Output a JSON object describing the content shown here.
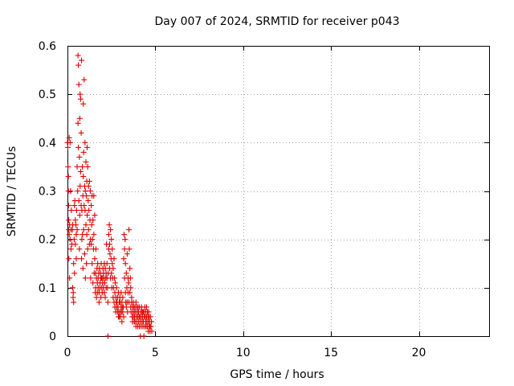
{
  "chart_data": {
    "type": "scatter",
    "title": "Day 007 of 2024, SRMTID for receiver p043",
    "xlabel": "GPS time / hours",
    "ylabel": "SRMTID / TECUs",
    "xlim": [
      0,
      24
    ],
    "ylim": [
      0,
      0.6
    ],
    "xticks": [
      "0",
      "5",
      "10",
      "15",
      "20"
    ],
    "yticks": [
      "0",
      "0.1",
      "0.2",
      "0.3",
      "0.4",
      "0.5",
      "0.6"
    ],
    "grid": true,
    "marker": "plus",
    "color": "#e00000",
    "series": [
      {
        "name": "SRMTID",
        "points": [
          [
            0.0,
            0.4
          ],
          [
            0.02,
            0.39
          ],
          [
            0.03,
            0.35
          ],
          [
            0.05,
            0.33
          ],
          [
            0.05,
            0.3
          ],
          [
            0.06,
            0.27
          ],
          [
            0.07,
            0.24
          ],
          [
            0.08,
            0.22
          ],
          [
            0.08,
            0.16
          ],
          [
            0.1,
            0.41
          ],
          [
            0.1,
            0.21
          ],
          [
            0.12,
            0.23
          ],
          [
            0.12,
            0.12
          ],
          [
            0.15,
            0.4
          ],
          [
            0.15,
            0.2
          ],
          [
            0.18,
            0.3
          ],
          [
            0.2,
            0.22
          ],
          [
            0.2,
            0.18
          ],
          [
            0.22,
            0.26
          ],
          [
            0.25,
            0.19
          ],
          [
            0.28,
            0.22
          ],
          [
            0.3,
            0.23
          ],
          [
            0.3,
            0.1
          ],
          [
            0.32,
            0.08
          ],
          [
            0.33,
            0.09
          ],
          [
            0.35,
            0.07
          ],
          [
            0.35,
            0.15
          ],
          [
            0.38,
            0.2
          ],
          [
            0.4,
            0.27
          ],
          [
            0.4,
            0.13
          ],
          [
            0.42,
            0.28
          ],
          [
            0.45,
            0.19
          ],
          [
            0.45,
            0.24
          ],
          [
            0.48,
            0.23
          ],
          [
            0.5,
            0.21
          ],
          [
            0.5,
            0.16
          ],
          [
            0.52,
            0.26
          ],
          [
            0.55,
            0.35
          ],
          [
            0.55,
            0.22
          ],
          [
            0.58,
            0.3
          ],
          [
            0.6,
            0.58
          ],
          [
            0.6,
            0.44
          ],
          [
            0.62,
            0.56
          ],
          [
            0.62,
            0.39
          ],
          [
            0.65,
            0.52
          ],
          [
            0.65,
            0.28
          ],
          [
            0.68,
            0.37
          ],
          [
            0.68,
            0.18
          ],
          [
            0.7,
            0.45
          ],
          [
            0.7,
            0.25
          ],
          [
            0.72,
            0.5
          ],
          [
            0.72,
            0.31
          ],
          [
            0.75,
            0.49
          ],
          [
            0.75,
            0.34
          ],
          [
            0.78,
            0.42
          ],
          [
            0.78,
            0.27
          ],
          [
            0.8,
            0.57
          ],
          [
            0.8,
            0.16
          ],
          [
            0.82,
            0.26
          ],
          [
            0.82,
            0.2
          ],
          [
            0.85,
            0.35
          ],
          [
            0.85,
            0.21
          ],
          [
            0.88,
            0.29
          ],
          [
            0.88,
            0.14
          ],
          [
            0.9,
            0.48
          ],
          [
            0.9,
            0.33
          ],
          [
            0.92,
            0.38
          ],
          [
            0.92,
            0.22
          ],
          [
            0.95,
            0.53
          ],
          [
            0.95,
            0.27
          ],
          [
            0.98,
            0.31
          ],
          [
            0.98,
            0.17
          ],
          [
            1.0,
            0.4
          ],
          [
            1.0,
            0.26
          ],
          [
            1.02,
            0.3
          ],
          [
            1.02,
            0.12
          ],
          [
            1.05,
            0.36
          ],
          [
            1.05,
            0.23
          ],
          [
            1.08,
            0.29
          ],
          [
            1.08,
            0.15
          ],
          [
            1.1,
            0.32
          ],
          [
            1.1,
            0.21
          ],
          [
            1.12,
            0.39
          ],
          [
            1.12,
            0.25
          ],
          [
            1.15,
            0.35
          ],
          [
            1.15,
            0.18
          ],
          [
            1.18,
            0.28
          ],
          [
            1.2,
            0.31
          ],
          [
            1.2,
            0.22
          ],
          [
            1.22,
            0.26
          ],
          [
            1.25,
            0.32
          ],
          [
            1.25,
            0.19
          ],
          [
            1.28,
            0.24
          ],
          [
            1.3,
            0.3
          ],
          [
            1.3,
            0.2
          ],
          [
            1.32,
            0.12
          ],
          [
            1.35,
            0.27
          ],
          [
            1.35,
            0.19
          ],
          [
            1.38,
            0.23
          ],
          [
            1.4,
            0.29
          ],
          [
            1.4,
            0.15
          ],
          [
            1.42,
            0.2
          ],
          [
            1.45,
            0.24
          ],
          [
            1.45,
            0.11
          ],
          [
            1.48,
            0.18
          ],
          [
            1.5,
            0.29
          ],
          [
            1.5,
            0.21
          ],
          [
            1.52,
            0.13
          ],
          [
            1.55,
            0.25
          ],
          [
            1.55,
            0.16
          ],
          [
            1.58,
            0.09
          ],
          [
            1.6,
            0.13
          ],
          [
            1.6,
            0.1
          ],
          [
            1.62,
            0.18
          ],
          [
            1.65,
            0.12
          ],
          [
            1.65,
            0.08
          ],
          [
            1.68,
            0.14
          ],
          [
            1.7,
            0.11
          ],
          [
            1.7,
            0.09
          ],
          [
            1.72,
            0.15
          ],
          [
            1.75,
            0.1
          ],
          [
            1.75,
            0.12
          ],
          [
            1.78,
            0.13
          ],
          [
            1.8,
            0.09
          ],
          [
            1.8,
            0.07
          ],
          [
            1.82,
            0.14
          ],
          [
            1.85,
            0.11
          ],
          [
            1.85,
            0.1
          ],
          [
            1.88,
            0.13
          ],
          [
            1.9,
            0.12
          ],
          [
            1.9,
            0.08
          ],
          [
            1.92,
            0.15
          ],
          [
            1.95,
            0.1
          ],
          [
            1.95,
            0.12
          ],
          [
            1.98,
            0.09
          ],
          [
            2.0,
            0.12
          ],
          [
            2.0,
            0.11
          ],
          [
            2.02,
            0.14
          ],
          [
            2.05,
            0.1
          ],
          [
            2.05,
            0.13
          ],
          [
            2.08,
            0.12
          ],
          [
            2.1,
            0.09
          ],
          [
            2.1,
            0.15
          ],
          [
            2.12,
            0.11
          ],
          [
            2.15,
            0.14
          ],
          [
            2.15,
            0.08
          ],
          [
            2.18,
            0.12
          ],
          [
            2.2,
            0.1
          ],
          [
            2.2,
            0.13
          ],
          [
            2.22,
            0.19
          ],
          [
            2.25,
            0.15
          ],
          [
            2.25,
            0.12
          ],
          [
            2.28,
            0.1
          ],
          [
            2.3,
            0.07
          ],
          [
            2.3,
            0.0
          ],
          [
            2.32,
            0.13
          ],
          [
            2.35,
            0.21
          ],
          [
            2.35,
            0.18
          ],
          [
            2.38,
            0.23
          ],
          [
            2.4,
            0.19
          ],
          [
            2.4,
            0.14
          ],
          [
            2.42,
            0.17
          ],
          [
            2.45,
            0.22
          ],
          [
            2.45,
            0.12
          ],
          [
            2.48,
            0.16
          ],
          [
            2.5,
            0.2
          ],
          [
            2.5,
            0.13
          ],
          [
            2.52,
            0.1
          ],
          [
            2.55,
            0.18
          ],
          [
            2.55,
            0.15
          ],
          [
            2.58,
            0.12
          ],
          [
            2.6,
            0.08
          ],
          [
            2.6,
            0.14
          ],
          [
            2.62,
            0.1
          ],
          [
            2.65,
            0.07
          ],
          [
            2.65,
            0.16
          ],
          [
            2.68,
            0.12
          ],
          [
            2.7,
            0.09
          ],
          [
            2.7,
            0.06
          ],
          [
            2.72,
            0.11
          ],
          [
            2.75,
            0.08
          ],
          [
            2.75,
            0.05
          ],
          [
            2.78,
            0.07
          ],
          [
            2.8,
            0.06
          ],
          [
            2.8,
            0.1
          ],
          [
            2.82,
            0.07
          ],
          [
            2.85,
            0.05
          ],
          [
            2.85,
            0.08
          ],
          [
            2.88,
            0.06
          ],
          [
            2.9,
            0.04
          ],
          [
            2.9,
            0.09
          ],
          [
            2.92,
            0.05
          ],
          [
            2.95,
            0.07
          ],
          [
            2.95,
            0.04
          ],
          [
            2.98,
            0.08
          ],
          [
            3.0,
            0.05
          ],
          [
            3.0,
            0.07
          ],
          [
            3.02,
            0.04
          ],
          [
            3.05,
            0.06
          ],
          [
            3.05,
            0.09
          ],
          [
            3.08,
            0.05
          ],
          [
            3.1,
            0.07
          ],
          [
            3.1,
            0.03
          ],
          [
            3.12,
            0.06
          ],
          [
            3.15,
            0.08
          ],
          [
            3.15,
            0.05
          ],
          [
            3.18,
            0.06
          ],
          [
            3.2,
            0.04
          ],
          [
            3.2,
            0.16
          ],
          [
            3.22,
            0.21
          ],
          [
            3.25,
            0.18
          ],
          [
            3.25,
            0.12
          ],
          [
            3.28,
            0.2
          ],
          [
            3.3,
            0.15
          ],
          [
            3.3,
            0.09
          ],
          [
            3.32,
            0.07
          ],
          [
            3.35,
            0.13
          ],
          [
            3.35,
            0.06
          ],
          [
            3.38,
            0.1
          ],
          [
            3.4,
            0.07
          ],
          [
            3.4,
            0.17
          ],
          [
            3.42,
            0.05
          ],
          [
            3.45,
            0.09
          ],
          [
            3.45,
            0.12
          ],
          [
            3.48,
            0.11
          ],
          [
            3.5,
            0.22
          ],
          [
            3.5,
            0.07
          ],
          [
            3.52,
            0.18
          ],
          [
            3.55,
            0.09
          ],
          [
            3.55,
            0.14
          ],
          [
            3.58,
            0.12
          ],
          [
            3.6,
            0.06
          ],
          [
            3.6,
            0.1
          ],
          [
            3.62,
            0.05
          ],
          [
            3.65,
            0.08
          ],
          [
            3.65,
            0.07
          ],
          [
            3.68,
            0.04
          ],
          [
            3.7,
            0.06
          ],
          [
            3.7,
            0.03
          ],
          [
            3.72,
            0.05
          ],
          [
            3.75,
            0.07
          ],
          [
            3.75,
            0.04
          ],
          [
            3.78,
            0.06
          ],
          [
            3.8,
            0.03
          ],
          [
            3.8,
            0.05
          ],
          [
            3.82,
            0.04
          ],
          [
            3.85,
            0.06
          ],
          [
            3.85,
            0.03
          ],
          [
            3.88,
            0.05
          ],
          [
            3.9,
            0.07
          ],
          [
            3.9,
            0.02
          ],
          [
            3.92,
            0.04
          ],
          [
            3.95,
            0.06
          ],
          [
            3.95,
            0.03
          ],
          [
            3.98,
            0.05
          ],
          [
            4.0,
            0.04
          ],
          [
            4.0,
            0.02
          ],
          [
            4.02,
            0.06
          ],
          [
            4.05,
            0.03
          ],
          [
            4.05,
            0.05
          ],
          [
            4.08,
            0.04
          ],
          [
            4.1,
            0.02
          ],
          [
            4.1,
            0.06
          ],
          [
            4.12,
            0.04
          ],
          [
            4.15,
            0.0
          ],
          [
            4.15,
            0.03
          ],
          [
            4.18,
            0.05
          ],
          [
            4.2,
            0.04
          ],
          [
            4.2,
            0.02
          ],
          [
            4.22,
            0.06
          ],
          [
            4.25,
            0.03
          ],
          [
            4.25,
            0.05
          ],
          [
            4.28,
            0.04
          ],
          [
            4.3,
            0.02
          ],
          [
            4.3,
            0.05
          ],
          [
            4.32,
            0.03
          ],
          [
            4.35,
            0.05
          ],
          [
            4.35,
            0.0
          ],
          [
            4.38,
            0.04
          ],
          [
            4.4,
            0.06
          ],
          [
            4.4,
            0.02
          ],
          [
            4.42,
            0.04
          ],
          [
            4.45,
            0.03
          ],
          [
            4.45,
            0.05
          ],
          [
            4.48,
            0.02
          ],
          [
            4.5,
            0.04
          ],
          [
            4.5,
            0.06
          ],
          [
            4.52,
            0.03
          ],
          [
            4.55,
            0.05
          ],
          [
            4.55,
            0.02
          ],
          [
            4.58,
            0.04
          ],
          [
            4.6,
            0.03
          ],
          [
            4.6,
            0.01
          ],
          [
            4.62,
            0.05
          ],
          [
            4.65,
            0.02
          ],
          [
            4.65,
            0.04
          ],
          [
            4.68,
            0.03
          ],
          [
            4.7,
            0.02
          ],
          [
            4.7,
            0.01
          ],
          [
            4.72,
            0.04
          ],
          [
            4.75,
            0.02
          ],
          [
            4.78,
            0.03
          ],
          [
            4.8,
            0.01
          ]
        ]
      }
    ]
  }
}
